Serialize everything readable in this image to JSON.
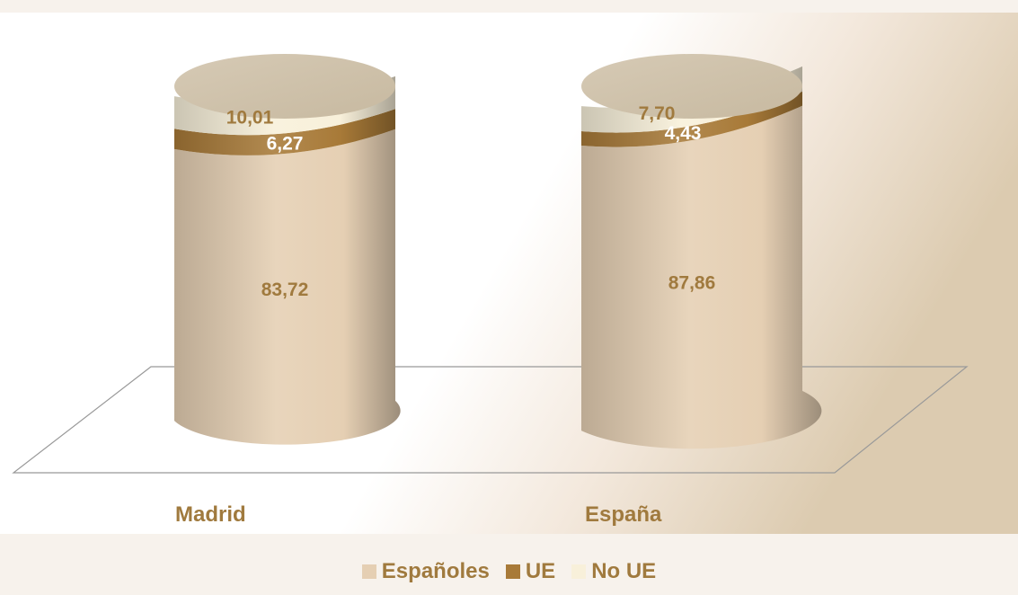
{
  "chart_data": {
    "type": "bar",
    "stacked": true,
    "style": "3d-cylinder",
    "categories": [
      "Madrid",
      "España"
    ],
    "series": [
      {
        "name": "Españoles",
        "values": [
          83.72,
          87.86
        ],
        "labels": [
          "83,72",
          "87,86"
        ],
        "color": "#e5cfb3",
        "label_color": "#a07a3e"
      },
      {
        "name": "UE",
        "values": [
          6.27,
          4.43
        ],
        "labels": [
          "6,27",
          "4,43"
        ],
        "color": "#a87a38",
        "label_color": "#ffffff"
      },
      {
        "name": "No UE",
        "values": [
          10.01,
          7.7
        ],
        "labels": [
          "10,01",
          "7,70"
        ],
        "color": "#f8f0da",
        "label_color": "#a07a3e"
      }
    ],
    "ylim": [
      0,
      100
    ],
    "grid": false,
    "legend_position": "bottom"
  },
  "colors": {
    "background": "#f7f2ec",
    "label": "#a07a3e",
    "floor_stroke": "#999999",
    "cylinder_top": "#c7b9a0"
  }
}
